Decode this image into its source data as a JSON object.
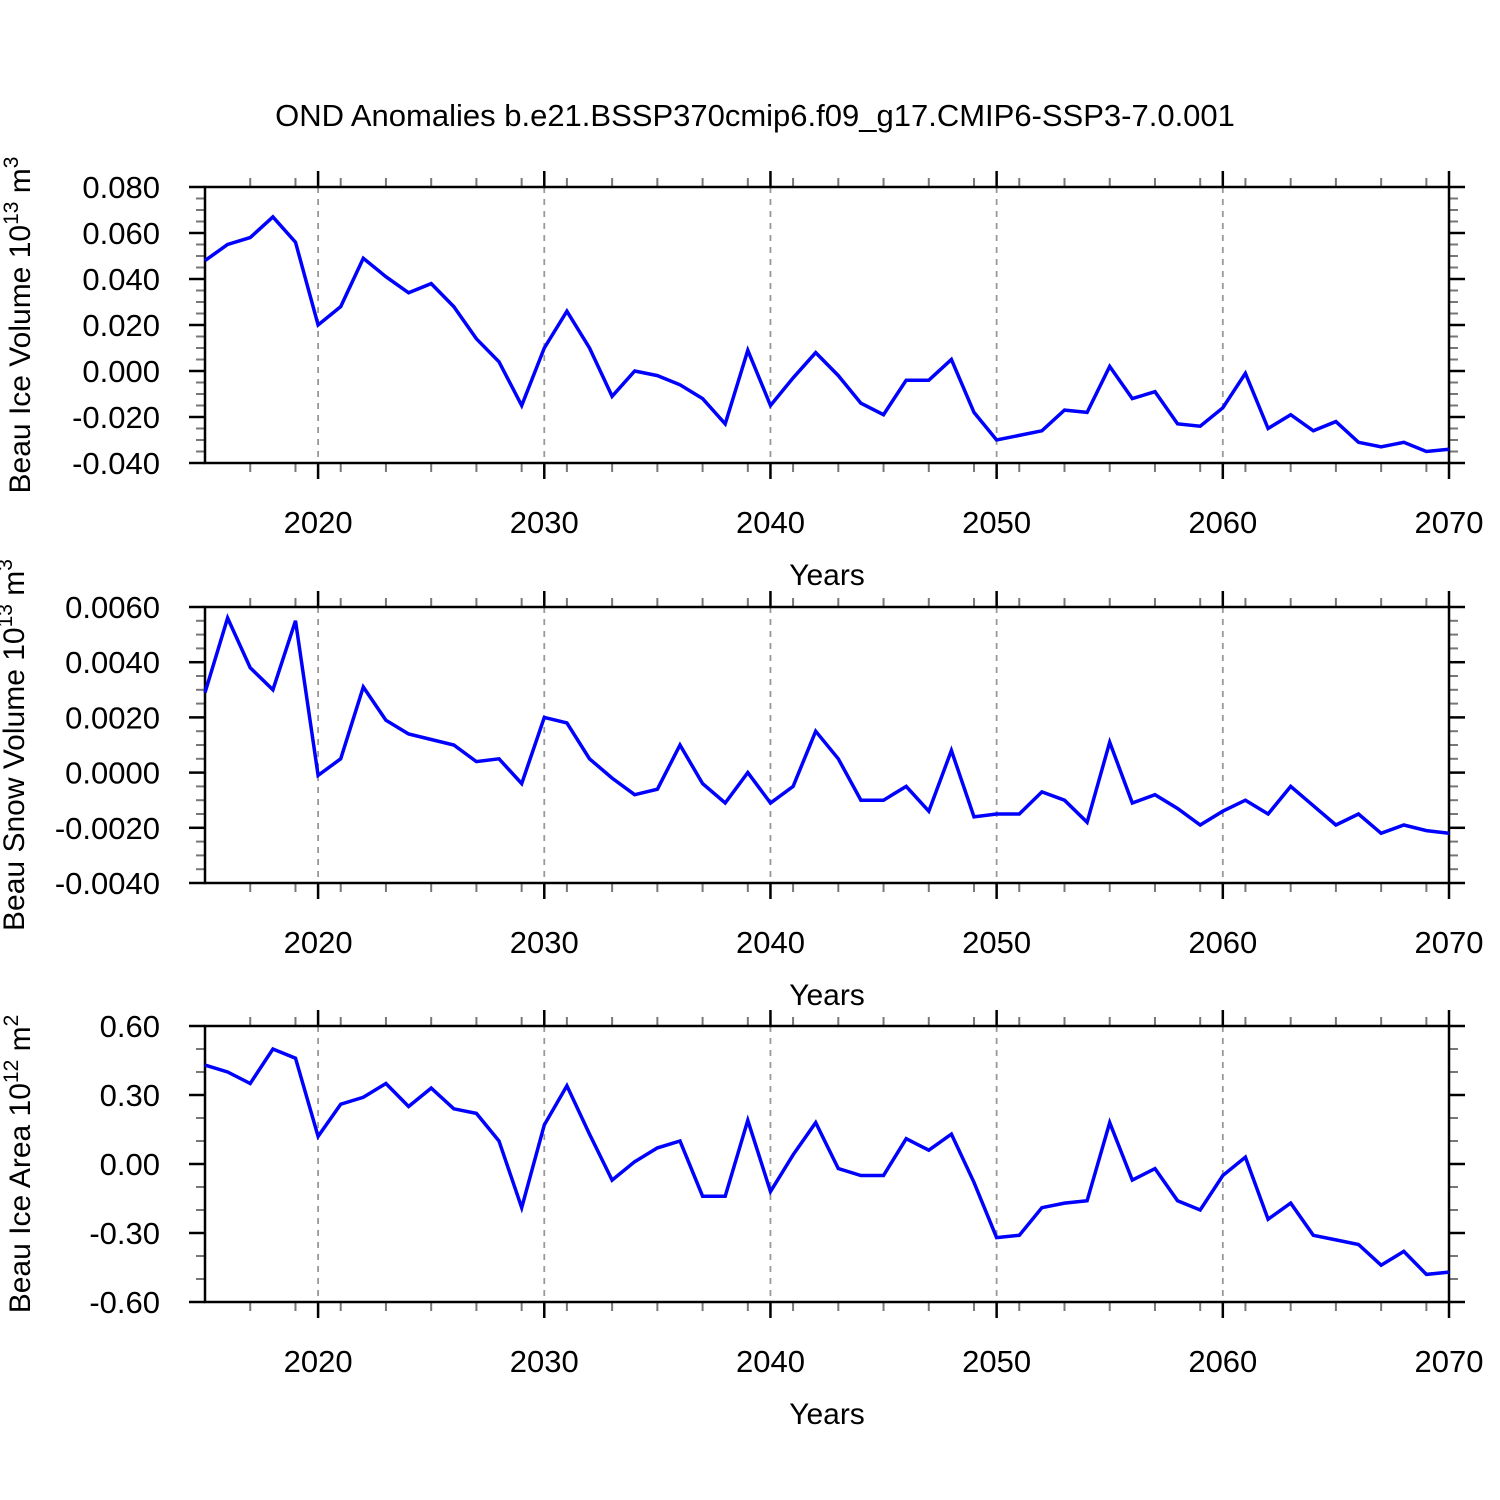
{
  "title": "OND Anomalies b.e21.BSSP370cmip6.f09_g17.CMIP6-SSP3-7.0.001",
  "style": {
    "line_color": "#0000ff",
    "grid_color": "#999999",
    "axis_color": "#000000",
    "minor_tick_color": "#777777",
    "background": "#ffffff"
  },
  "years": [
    2015,
    2016,
    2017,
    2018,
    2019,
    2020,
    2021,
    2022,
    2023,
    2024,
    2025,
    2026,
    2027,
    2028,
    2029,
    2030,
    2031,
    2032,
    2033,
    2034,
    2035,
    2036,
    2037,
    2038,
    2039,
    2040,
    2041,
    2042,
    2043,
    2044,
    2045,
    2046,
    2047,
    2048,
    2049,
    2050,
    2051,
    2052,
    2053,
    2054,
    2055,
    2056,
    2057,
    2058,
    2059,
    2060,
    2061,
    2062,
    2063,
    2064,
    2065,
    2066,
    2067,
    2068,
    2069,
    2070
  ],
  "chart_data": [
    {
      "type": "line",
      "series_name": "Beau Ice Volume anomaly",
      "ylabel": {
        "text": "Beau Ice Volume 10",
        "sup": "13",
        "unit": " m",
        "unit_sup": "3"
      },
      "xlabel": "Years",
      "xlim": [
        2015,
        2070
      ],
      "ylim": [
        -0.04,
        0.08
      ],
      "xtick_values": [
        2020,
        2030,
        2040,
        2050,
        2060,
        2070
      ],
      "xtick_labels": [
        "2020",
        "2030",
        "2040",
        "2050",
        "2060",
        "2070"
      ],
      "xtick_minor_step": 2,
      "ytick_values": [
        0.08,
        0.06,
        0.04,
        0.02,
        0.0,
        -0.02,
        -0.04
      ],
      "ytick_labels": [
        "0.080",
        "0.060",
        "0.040",
        "0.020",
        "0.000",
        "-0.020",
        "-0.040"
      ],
      "ytick_minor_step": 0.005,
      "grid": "vertical dashed gridlines at decades",
      "legend": "none",
      "values": [
        0.048,
        0.055,
        0.058,
        0.067,
        0.056,
        0.02,
        0.028,
        0.049,
        0.041,
        0.034,
        0.038,
        0.028,
        0.014,
        0.004,
        -0.015,
        0.01,
        0.026,
        0.01,
        -0.011,
        0.0,
        -0.002,
        -0.006,
        -0.012,
        -0.023,
        0.009,
        -0.015,
        -0.003,
        0.008,
        -0.002,
        -0.014,
        -0.019,
        -0.004,
        -0.004,
        0.005,
        -0.018,
        -0.03,
        -0.028,
        -0.026,
        -0.017,
        -0.018,
        0.002,
        -0.012,
        -0.009,
        -0.023,
        -0.024,
        -0.016,
        -0.001,
        -0.025,
        -0.019,
        -0.026,
        -0.022,
        -0.031,
        -0.033,
        -0.031,
        -0.035,
        -0.034
      ]
    },
    {
      "type": "line",
      "series_name": "Beau Snow Volume anomaly",
      "ylabel": {
        "text": "Beau Snow Volume 10",
        "sup": "13",
        "unit": " m",
        "unit_sup": "3"
      },
      "xlabel": "Years",
      "xlim": [
        2015,
        2070
      ],
      "ylim": [
        -0.004,
        0.006
      ],
      "xtick_values": [
        2020,
        2030,
        2040,
        2050,
        2060,
        2070
      ],
      "xtick_labels": [
        "2020",
        "2030",
        "2040",
        "2050",
        "2060",
        "2070"
      ],
      "xtick_minor_step": 2,
      "ytick_values": [
        0.006,
        0.004,
        0.002,
        0.0,
        -0.002,
        -0.004
      ],
      "ytick_labels": [
        "0.0060",
        "0.0040",
        "0.0020",
        "0.0000",
        "-0.0020",
        "-0.0040"
      ],
      "ytick_minor_step": 0.0005,
      "grid": "vertical dashed gridlines at decades",
      "legend": "none",
      "values": [
        0.0029,
        0.0056,
        0.0038,
        0.003,
        0.0055,
        -0.0001,
        0.0005,
        0.0031,
        0.0019,
        0.0014,
        0.0012,
        0.001,
        0.0004,
        0.0005,
        -0.0004,
        0.002,
        0.0018,
        0.0005,
        -0.0002,
        -0.0008,
        -0.0006,
        0.001,
        -0.0004,
        -0.0011,
        0.0,
        -0.0011,
        -0.0005,
        0.0015,
        0.0005,
        -0.001,
        -0.001,
        -0.0005,
        -0.0014,
        0.0008,
        -0.0016,
        -0.0015,
        -0.0015,
        -0.0007,
        -0.001,
        -0.0018,
        0.0011,
        -0.0011,
        -0.0008,
        -0.0013,
        -0.0019,
        -0.0014,
        -0.001,
        -0.0015,
        -0.0005,
        -0.0012,
        -0.0019,
        -0.0015,
        -0.0022,
        -0.0019,
        -0.0021,
        -0.0022
      ]
    },
    {
      "type": "line",
      "series_name": "Beau Ice Area anomaly",
      "ylabel": {
        "text": "Beau Ice Area 10",
        "sup": "12",
        "unit": " m",
        "unit_sup": "2"
      },
      "xlabel": "Years",
      "xlim": [
        2015,
        2070
      ],
      "ylim": [
        -0.6,
        0.6
      ],
      "xtick_values": [
        2020,
        2030,
        2040,
        2050,
        2060,
        2070
      ],
      "xtick_labels": [
        "2020",
        "2030",
        "2040",
        "2050",
        "2060",
        "2070"
      ],
      "xtick_minor_step": 2,
      "ytick_values": [
        0.6,
        0.3,
        0.0,
        -0.3,
        -0.6
      ],
      "ytick_labels": [
        "0.60",
        "0.30",
        "0.00",
        "-0.30",
        "-0.60"
      ],
      "ytick_minor_step": 0.1,
      "grid": "vertical dashed gridlines at decades",
      "legend": "none",
      "values": [
        0.43,
        0.4,
        0.35,
        0.5,
        0.46,
        0.12,
        0.26,
        0.29,
        0.35,
        0.25,
        0.33,
        0.24,
        0.22,
        0.1,
        -0.19,
        0.17,
        0.34,
        0.13,
        -0.07,
        0.01,
        0.07,
        0.1,
        -0.14,
        -0.14,
        0.19,
        -0.12,
        0.04,
        0.18,
        -0.02,
        -0.05,
        -0.05,
        0.11,
        0.06,
        0.13,
        -0.08,
        -0.32,
        -0.31,
        -0.19,
        -0.17,
        -0.16,
        0.18,
        -0.07,
        -0.02,
        -0.16,
        -0.2,
        -0.05,
        0.03,
        -0.24,
        -0.17,
        -0.31,
        -0.33,
        -0.35,
        -0.44,
        -0.38,
        -0.48,
        -0.47
      ]
    }
  ]
}
